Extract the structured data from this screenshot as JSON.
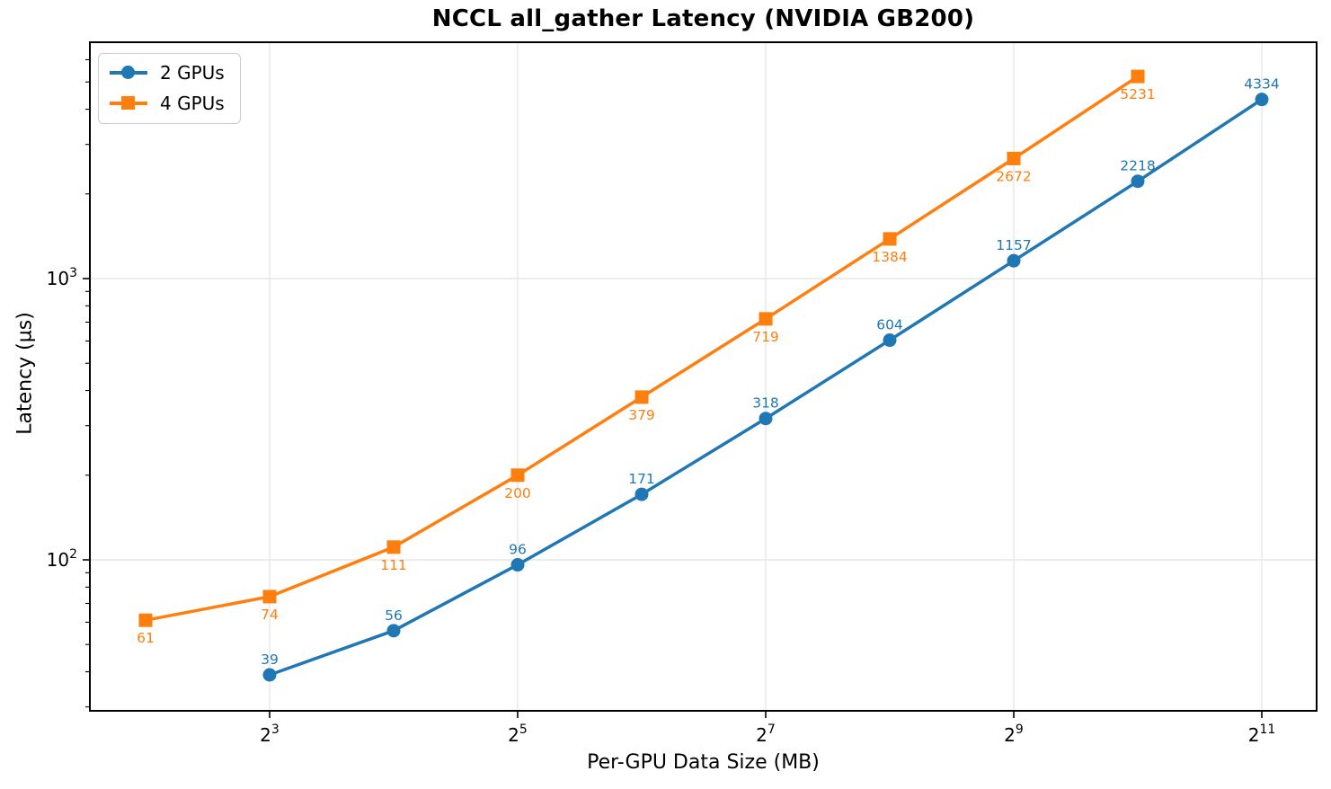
{
  "figure": {
    "background": "#ffffff",
    "spine_color": "#000000",
    "grid_color": "#e6e6e6"
  },
  "chart_data": {
    "type": "line",
    "title": "NCCL all_gather Latency (NVIDIA GB200)",
    "xlabel": "Per-GPU Data Size (MB)",
    "ylabel": "Latency (µs)",
    "grid": true,
    "legend_position": "upper-left",
    "x_axis": {
      "scale": "log2",
      "tick_base": "2",
      "tick_exponents": [
        3,
        5,
        7,
        9,
        11
      ],
      "range_exponents": [
        1.55,
        11.45
      ]
    },
    "y_axis": {
      "scale": "log10",
      "tick_base": "10",
      "tick_exponents": [
        2,
        3
      ],
      "range": [
        29.5,
        6900
      ]
    },
    "series": [
      {
        "name": "2 GPUs",
        "color": "#1f77b4",
        "marker": "circle",
        "label_side": "above",
        "x_exponents": [
          3,
          4,
          5,
          6,
          7,
          8,
          9,
          10,
          11
        ],
        "x_values_mb": [
          8,
          16,
          32,
          64,
          128,
          256,
          512,
          1024,
          2048
        ],
        "latency_us": [
          39,
          56,
          96,
          171,
          318,
          604,
          1157,
          2218,
          4334
        ]
      },
      {
        "name": "4 GPUs",
        "color": "#ff7f0e",
        "marker": "square",
        "label_side": "below",
        "x_exponents": [
          2,
          3,
          4,
          5,
          6,
          7,
          8,
          9,
          10
        ],
        "x_values_mb": [
          4,
          8,
          16,
          32,
          64,
          128,
          256,
          512,
          1024
        ],
        "latency_us": [
          61,
          74,
          111,
          200,
          379,
          719,
          1384,
          2672,
          5231
        ]
      }
    ]
  }
}
